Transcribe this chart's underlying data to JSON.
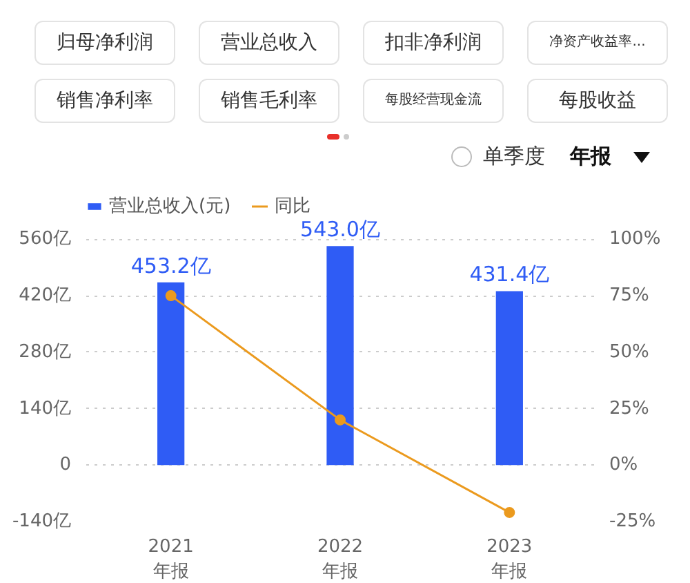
{
  "chart_data": {
    "type": "bar",
    "categories": [
      "2021\n年报",
      "2022\n年报",
      "2023\n年报"
    ],
    "series": [
      {
        "name": "营业总收入(元)",
        "color": "#2f5cf5",
        "values": [
          453.2,
          543.0,
          431.4
        ],
        "value_labels": [
          "453.2亿",
          "543.0亿",
          "431.4亿"
        ]
      },
      {
        "name": "同比",
        "type": "line",
        "axis": "y2",
        "color": "#eb9a1e",
        "values": [
          75,
          20,
          -21
        ]
      }
    ],
    "ylim": [
      -140,
      560
    ],
    "yticks": [
      {
        "value": -140,
        "label": "-140亿"
      },
      0,
      {
        "value": 140,
        "label": "140亿"
      },
      {
        "value": 280,
        "label": "280亿"
      },
      {
        "value": 420,
        "label": "420亿"
      },
      {
        "value": 560,
        "label": "560亿"
      }
    ],
    "y2lim": [
      -25,
      100
    ],
    "y2ticks": [
      {
        "value": -25,
        "label": "-25%"
      },
      {
        "value": 0,
        "label": "0%"
      },
      {
        "value": 25,
        "label": "25%"
      },
      {
        "value": 50,
        "label": "50%"
      },
      {
        "value": 75,
        "label": "75%"
      },
      {
        "value": 100,
        "label": "100%"
      }
    ],
    "grid": "y",
    "legend": "top left",
    "marker": "circle",
    "annotations": [
      "归母净利润",
      "营业总收入",
      "扣非净利润",
      "净资产收益率...",
      "销售净利率",
      "销售毛利率",
      "每股经营现金流",
      "每股收益",
      "单季度",
      "年报"
    ]
  }
}
